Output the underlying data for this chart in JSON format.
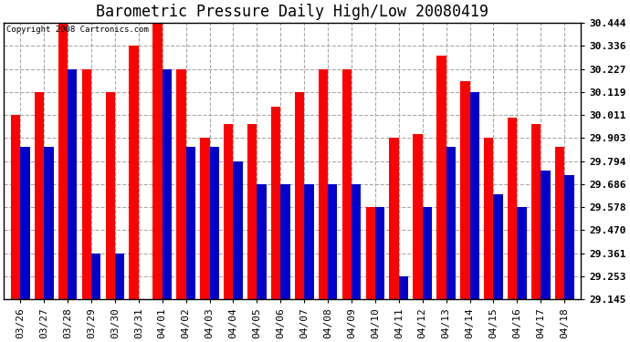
{
  "title": "Barometric Pressure Daily High/Low 20080419",
  "copyright": "Copyright 2008 Cartronics.com",
  "categories": [
    "03/26",
    "03/27",
    "03/28",
    "03/29",
    "03/30",
    "03/31",
    "04/01",
    "04/02",
    "04/03",
    "04/04",
    "04/05",
    "04/06",
    "04/07",
    "04/08",
    "04/09",
    "04/10",
    "04/11",
    "04/12",
    "04/13",
    "04/14",
    "04/15",
    "04/16",
    "04/17",
    "04/18"
  ],
  "highs": [
    30.011,
    30.119,
    30.444,
    30.227,
    30.119,
    30.336,
    30.444,
    30.227,
    29.903,
    29.97,
    29.97,
    30.05,
    30.119,
    30.227,
    30.227,
    29.578,
    29.903,
    29.92,
    30.29,
    30.17,
    29.903,
    30.0,
    29.97,
    29.86
  ],
  "lows": [
    29.86,
    29.86,
    30.227,
    29.361,
    29.361,
    29.145,
    30.227,
    29.86,
    29.86,
    29.794,
    29.686,
    29.686,
    29.686,
    29.686,
    29.686,
    29.578,
    29.253,
    29.578,
    29.86,
    30.119,
    29.64,
    29.578,
    29.75,
    29.73
  ],
  "bar_color_high": "#ff0000",
  "bar_color_low": "#0000cc",
  "bg_color": "#ffffff",
  "grid_color": "#aaaaaa",
  "ylim_min": 29.145,
  "ylim_max": 30.444,
  "yticks": [
    29.145,
    29.253,
    29.361,
    29.47,
    29.578,
    29.686,
    29.794,
    29.903,
    30.011,
    30.119,
    30.227,
    30.336,
    30.444
  ],
  "title_fontsize": 12,
  "tick_fontsize": 8,
  "bar_width": 0.4
}
